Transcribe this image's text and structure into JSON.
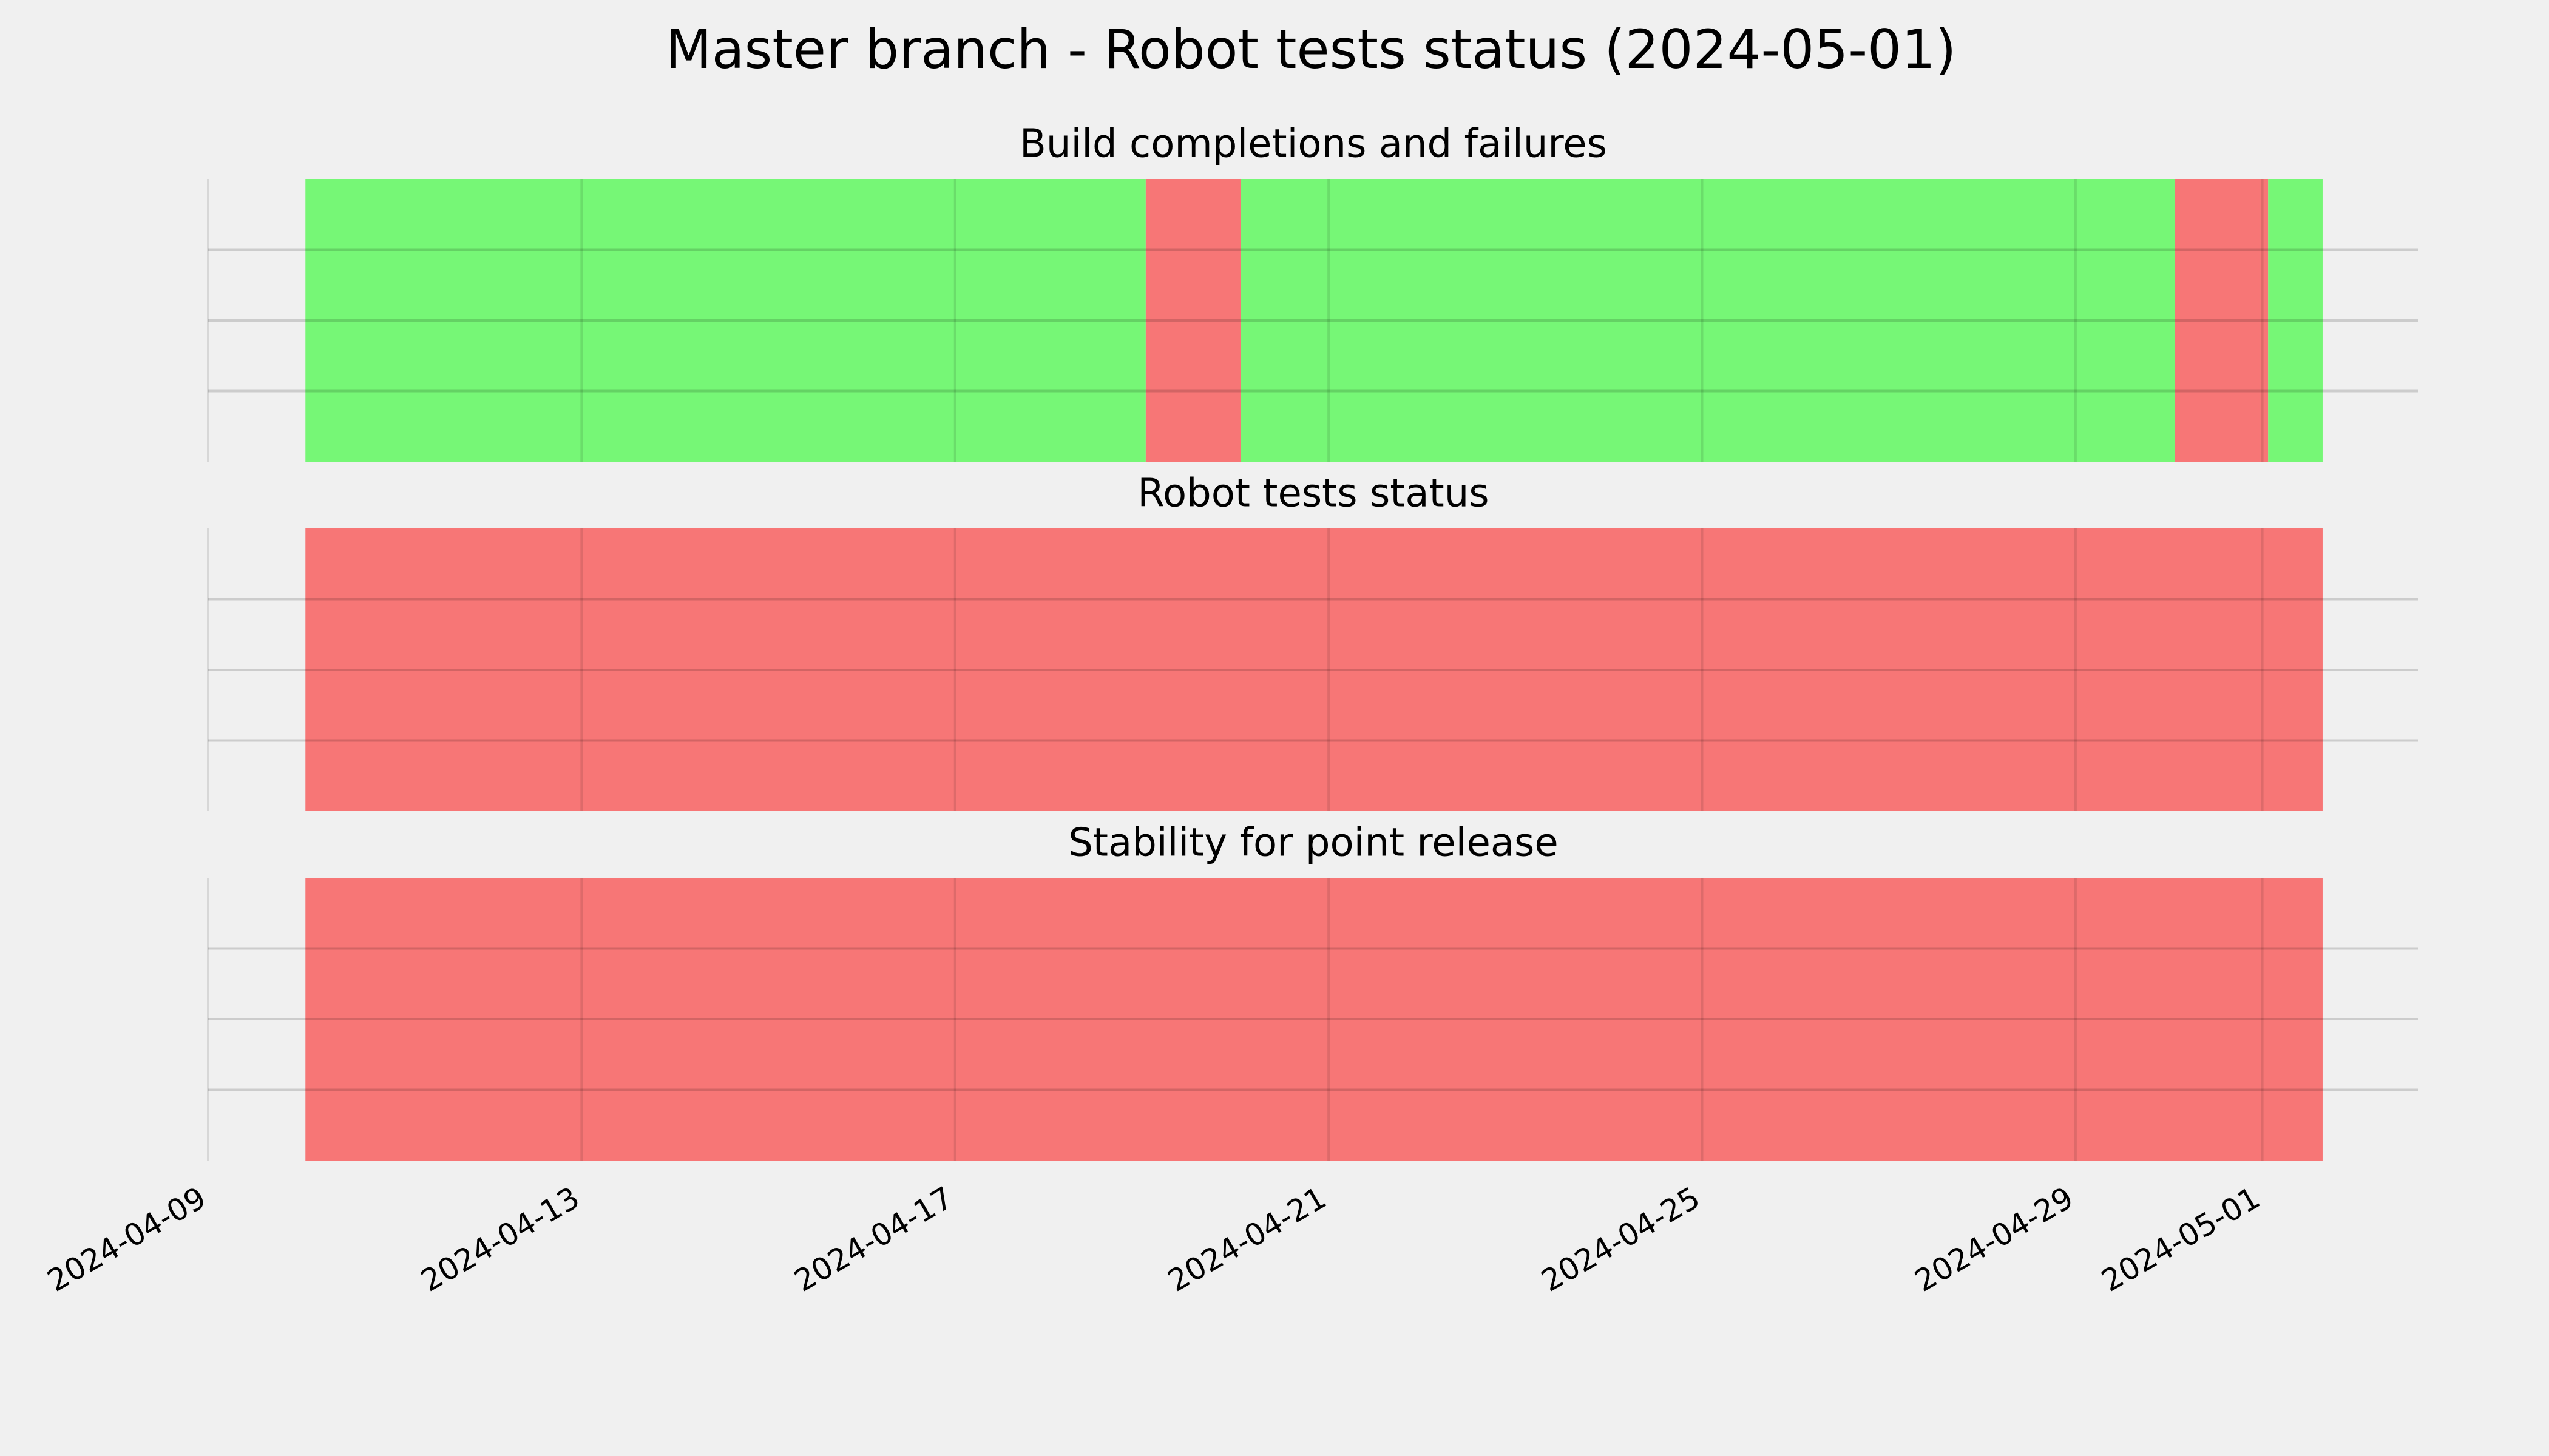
{
  "chart_data": {
    "type": "timeline",
    "title": "Master branch - Robot tests status (2024-05-01)",
    "xlim": [
      "2024-04-09T00:00:00Z",
      "2024-05-02T16:00:00Z"
    ],
    "xticks": [
      "2024-04-09",
      "2024-04-13",
      "2024-04-17",
      "2024-04-21",
      "2024-04-25",
      "2024-04-29",
      "2024-05-01"
    ],
    "ylim": [
      0,
      1
    ],
    "yticks": [
      0.25,
      0.5,
      0.75
    ],
    "grid": true,
    "panels": [
      {
        "title": "Build completions and failures",
        "spans": [
          {
            "start": "2024-04-10T01:00:00Z",
            "end": "2024-04-19T01:00:00Z",
            "color": "#76f776"
          },
          {
            "start": "2024-04-19T01:00:00Z",
            "end": "2024-04-20T01:30:00Z",
            "color": "#f77676"
          },
          {
            "start": "2024-04-20T01:30:00Z",
            "end": "2024-04-30T01:30:00Z",
            "color": "#76f776"
          },
          {
            "start": "2024-04-30T01:30:00Z",
            "end": "2024-05-01T01:30:00Z",
            "color": "#f77676"
          },
          {
            "start": "2024-05-01T01:30:00Z",
            "end": "2024-05-01T15:30:00Z",
            "color": "#76f776"
          }
        ]
      },
      {
        "title": "Robot tests status",
        "spans": [
          {
            "start": "2024-04-10T01:00:00Z",
            "end": "2024-05-01T15:30:00Z",
            "color": "#f77676"
          }
        ]
      },
      {
        "title": "Stability for point release",
        "spans": [
          {
            "start": "2024-04-10T01:00:00Z",
            "end": "2024-05-01T15:30:00Z",
            "color": "#f77676"
          }
        ]
      }
    ]
  }
}
